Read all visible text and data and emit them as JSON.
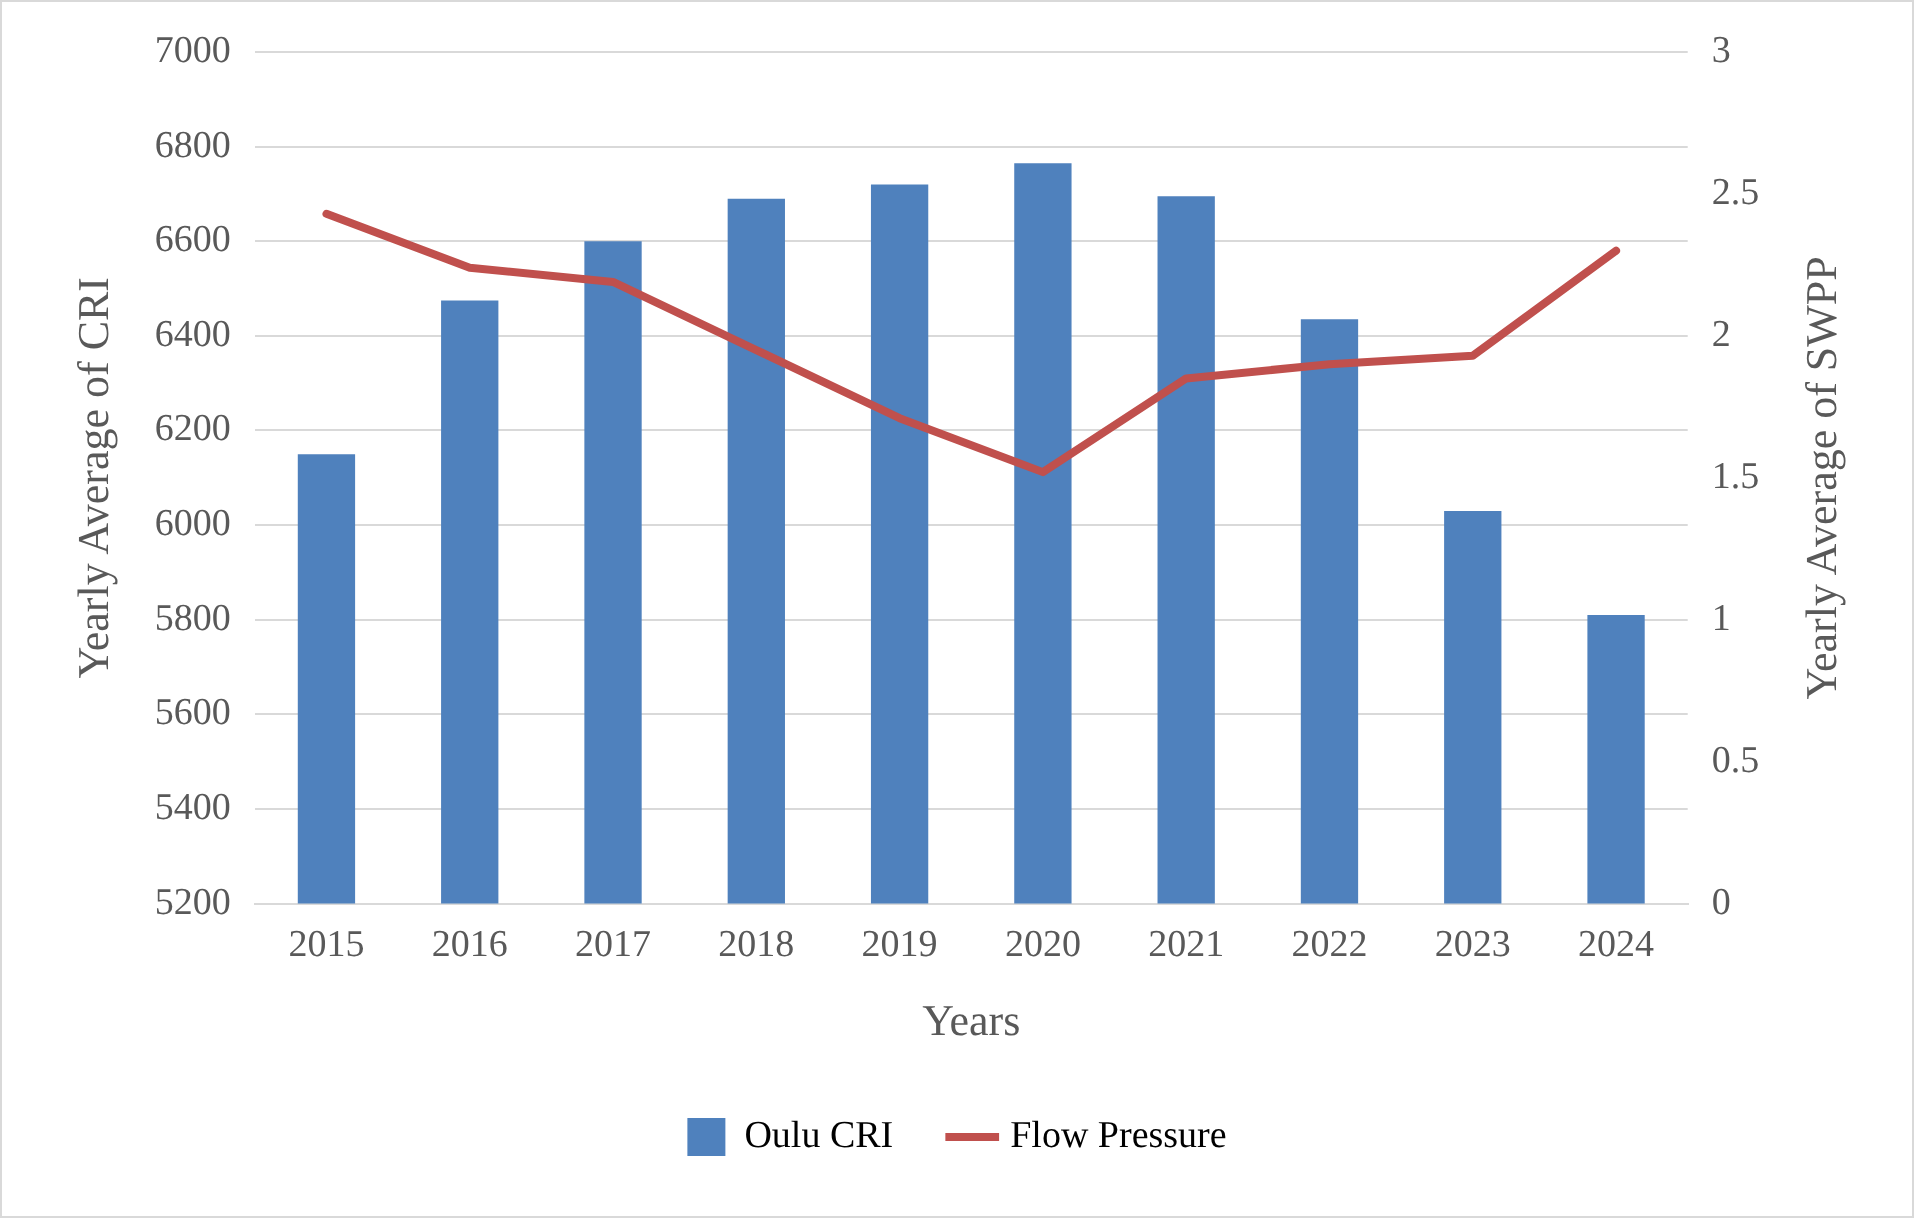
{
  "chart_data": {
    "type": "bar",
    "xlabel": "Years",
    "ylabel": "Yearly Average of CRI",
    "y2label": "Yearly Average of SWPP",
    "categories": [
      "2015",
      "2016",
      "2017",
      "2018",
      "2019",
      "2020",
      "2021",
      "2022",
      "2023",
      "2024"
    ],
    "series": [
      {
        "name": "Oulu CRI",
        "color": "#4f81bd",
        "values": [
          6150,
          6475,
          6600,
          6690,
          6720,
          6765,
          6695,
          6435,
          6030,
          5810
        ]
      },
      {
        "name": "Flow Pressure",
        "type": "line",
        "axis": "y2",
        "color": "#c0504d",
        "marker": "none",
        "values": [
          2.43,
          2.24,
          2.19,
          1.95,
          1.71,
          1.52,
          1.85,
          1.9,
          1.93,
          2.3
        ]
      }
    ],
    "ylim": [
      5200,
      7000
    ],
    "yticks": [
      5200,
      5400,
      5600,
      5800,
      6000,
      6200,
      6400,
      6600,
      6800,
      7000
    ],
    "y2lim": [
      0,
      3
    ],
    "y2ticks": [
      0,
      0.5,
      1,
      1.5,
      2,
      2.5,
      3
    ],
    "grid": "y",
    "legend": "bottom"
  }
}
